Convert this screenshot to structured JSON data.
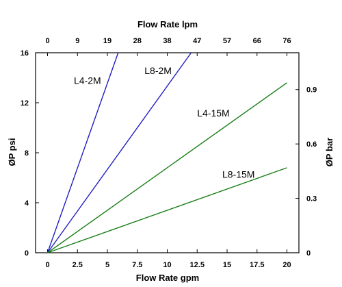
{
  "chart_data": {
    "type": "line",
    "grid": false,
    "xlabel": "Flow Rate gpm",
    "x2label": "Flow Rate lpm",
    "ylabel": "ØP psi",
    "y2label": "ØP bar",
    "xlim": [
      -1,
      21
    ],
    "ylim": [
      0,
      16
    ],
    "y2lim": [
      0,
      1.103
    ],
    "x_ticks": [
      0,
      2.5,
      5,
      7.5,
      10,
      12.5,
      15,
      17.5,
      20
    ],
    "x_tick_labels": [
      "0",
      "2.5",
      "5",
      "7.5",
      "10",
      "12.5",
      "15",
      "17.5",
      "20"
    ],
    "x2_tick_labels": [
      "0",
      "9",
      "19",
      "28",
      "38",
      "47",
      "57",
      "66",
      "76"
    ],
    "y_ticks": [
      0,
      4,
      8,
      12,
      16
    ],
    "y_tick_labels": [
      "0",
      "4",
      "8",
      "12",
      "16"
    ],
    "y2_ticks": [
      0.3,
      0.6,
      0.9
    ],
    "y2_tick_labels": [
      "0.3",
      "0.6",
      "0.9"
    ],
    "series": [
      {
        "name": "L4-2M",
        "color": "#1f1fbf",
        "x": [
          0,
          5.9
        ],
        "y": [
          0,
          16
        ]
      },
      {
        "name": "L8-2M",
        "color": "#1f1fbf",
        "x": [
          0,
          12
        ],
        "y": [
          0,
          16
        ]
      },
      {
        "name": "L4-15M",
        "color": "#1a7f1a",
        "x": [
          0,
          20
        ],
        "y": [
          0,
          13.6
        ]
      },
      {
        "name": "L8-15M",
        "color": "#1a7f1a",
        "x": [
          0,
          20
        ],
        "y": [
          0,
          6.8
        ]
      }
    ]
  }
}
